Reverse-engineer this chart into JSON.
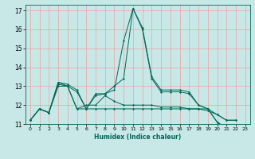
{
  "xlabel": "Humidex (Indice chaleur)",
  "xlim": [
    -0.5,
    23.5
  ],
  "ylim": [
    11,
    17.3
  ],
  "yticks": [
    11,
    12,
    13,
    14,
    15,
    16,
    17
  ],
  "xticks": [
    0,
    1,
    2,
    3,
    4,
    5,
    6,
    7,
    8,
    9,
    10,
    11,
    12,
    13,
    14,
    15,
    16,
    17,
    18,
    19,
    20,
    21,
    22,
    23
  ],
  "bg_color": "#c8e8e8",
  "grid_color": "#f0a0a0",
  "line_color": "#006655",
  "x_values": [
    0,
    1,
    2,
    3,
    4,
    5,
    6,
    7,
    8,
    9,
    10,
    11,
    12,
    13,
    14,
    15,
    16,
    17,
    18,
    19,
    20,
    21,
    22
  ],
  "series": [
    [
      11.2,
      11.8,
      11.6,
      13.2,
      13.1,
      12.8,
      11.8,
      12.6,
      12.6,
      13.0,
      13.4,
      17.1,
      16.1,
      13.5,
      12.8,
      12.8,
      12.8,
      12.7,
      12.0,
      11.8,
      11.1,
      10.8,
      10.8
    ],
    [
      11.2,
      11.8,
      11.6,
      13.2,
      13.0,
      12.7,
      11.8,
      12.5,
      12.6,
      12.8,
      15.4,
      17.1,
      16.0,
      13.4,
      12.7,
      12.7,
      12.7,
      12.6,
      12.0,
      11.8,
      11.1,
      10.7,
      10.7
    ],
    [
      11.2,
      11.8,
      11.6,
      13.1,
      13.0,
      11.8,
      12.0,
      12.0,
      12.5,
      12.2,
      12.0,
      12.0,
      12.0,
      12.0,
      11.9,
      11.9,
      11.9,
      11.8,
      11.8,
      11.8,
      11.5,
      11.2,
      11.2
    ],
    [
      11.2,
      11.8,
      11.6,
      13.0,
      13.0,
      11.8,
      11.8,
      11.8,
      11.8,
      11.8,
      11.8,
      11.8,
      11.8,
      11.8,
      11.8,
      11.8,
      11.8,
      11.8,
      11.8,
      11.7,
      11.5,
      11.2,
      11.2
    ]
  ]
}
